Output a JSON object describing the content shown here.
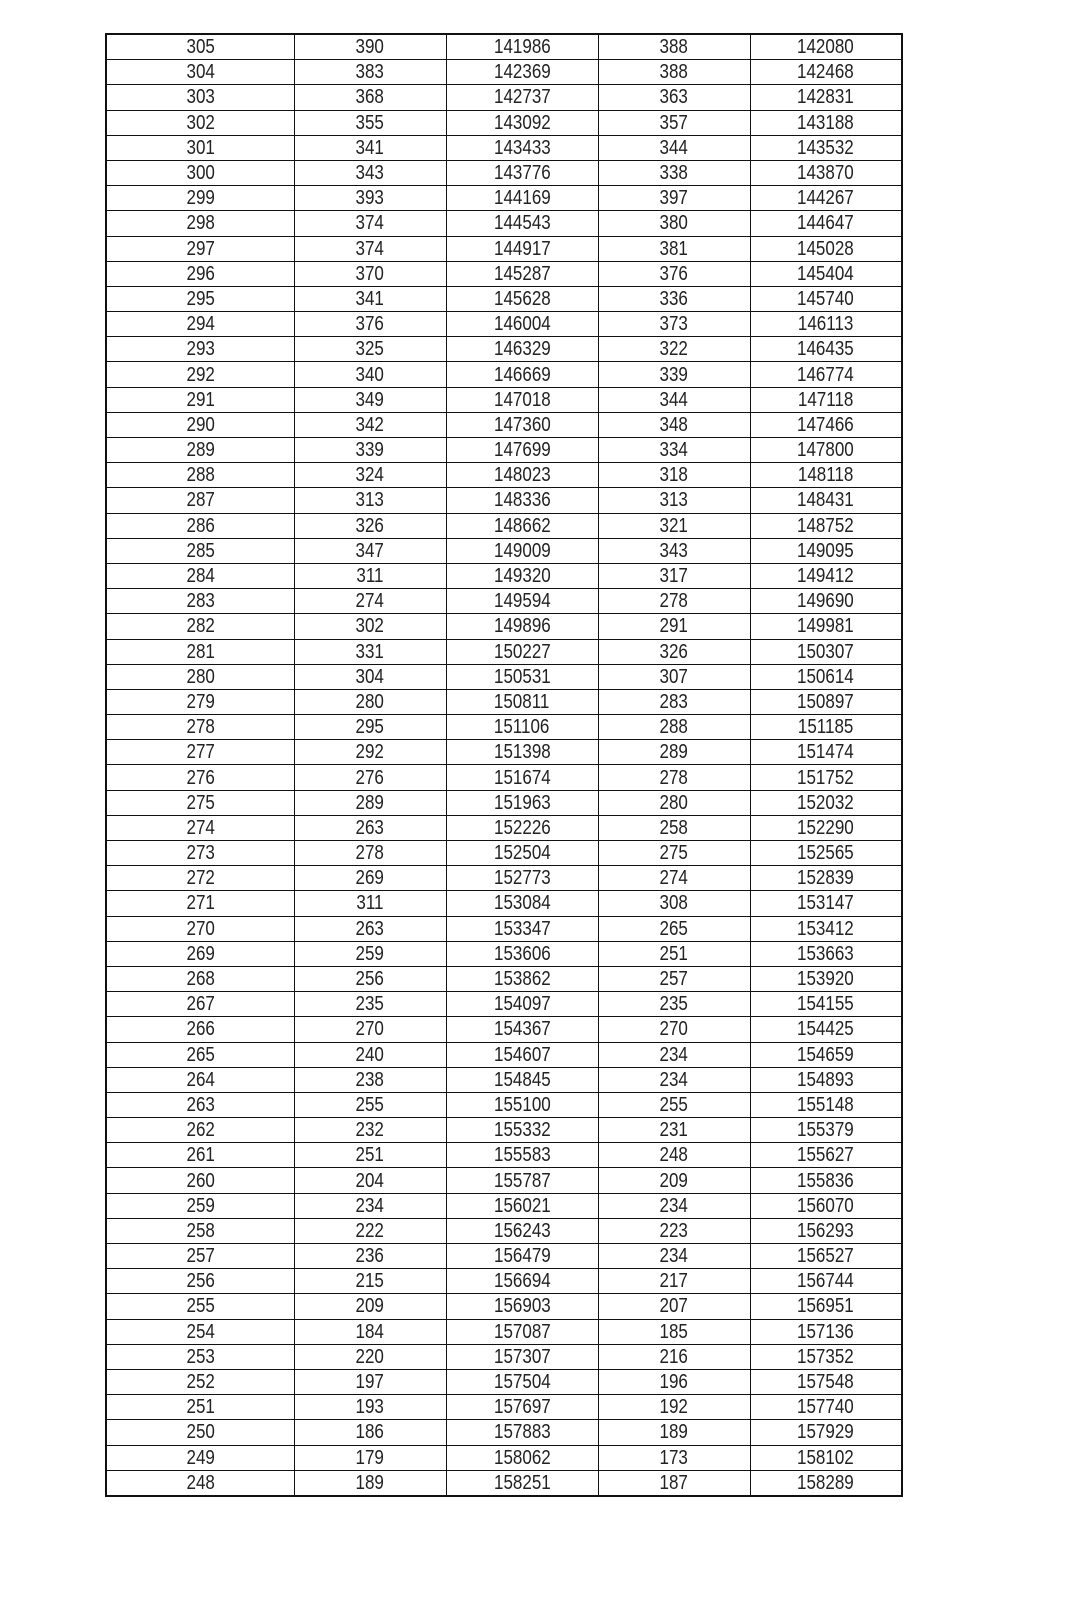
{
  "table": {
    "rows": [
      [
        "305",
        "390",
        "141986",
        "388",
        "142080"
      ],
      [
        "304",
        "383",
        "142369",
        "388",
        "142468"
      ],
      [
        "303",
        "368",
        "142737",
        "363",
        "142831"
      ],
      [
        "302",
        "355",
        "143092",
        "357",
        "143188"
      ],
      [
        "301",
        "341",
        "143433",
        "344",
        "143532"
      ],
      [
        "300",
        "343",
        "143776",
        "338",
        "143870"
      ],
      [
        "299",
        "393",
        "144169",
        "397",
        "144267"
      ],
      [
        "298",
        "374",
        "144543",
        "380",
        "144647"
      ],
      [
        "297",
        "374",
        "144917",
        "381",
        "145028"
      ],
      [
        "296",
        "370",
        "145287",
        "376",
        "145404"
      ],
      [
        "295",
        "341",
        "145628",
        "336",
        "145740"
      ],
      [
        "294",
        "376",
        "146004",
        "373",
        "146113"
      ],
      [
        "293",
        "325",
        "146329",
        "322",
        "146435"
      ],
      [
        "292",
        "340",
        "146669",
        "339",
        "146774"
      ],
      [
        "291",
        "349",
        "147018",
        "344",
        "147118"
      ],
      [
        "290",
        "342",
        "147360",
        "348",
        "147466"
      ],
      [
        "289",
        "339",
        "147699",
        "334",
        "147800"
      ],
      [
        "288",
        "324",
        "148023",
        "318",
        "148118"
      ],
      [
        "287",
        "313",
        "148336",
        "313",
        "148431"
      ],
      [
        "286",
        "326",
        "148662",
        "321",
        "148752"
      ],
      [
        "285",
        "347",
        "149009",
        "343",
        "149095"
      ],
      [
        "284",
        "311",
        "149320",
        "317",
        "149412"
      ],
      [
        "283",
        "274",
        "149594",
        "278",
        "149690"
      ],
      [
        "282",
        "302",
        "149896",
        "291",
        "149981"
      ],
      [
        "281",
        "331",
        "150227",
        "326",
        "150307"
      ],
      [
        "280",
        "304",
        "150531",
        "307",
        "150614"
      ],
      [
        "279",
        "280",
        "150811",
        "283",
        "150897"
      ],
      [
        "278",
        "295",
        "151106",
        "288",
        "151185"
      ],
      [
        "277",
        "292",
        "151398",
        "289",
        "151474"
      ],
      [
        "276",
        "276",
        "151674",
        "278",
        "151752"
      ],
      [
        "275",
        "289",
        "151963",
        "280",
        "152032"
      ],
      [
        "274",
        "263",
        "152226",
        "258",
        "152290"
      ],
      [
        "273",
        "278",
        "152504",
        "275",
        "152565"
      ],
      [
        "272",
        "269",
        "152773",
        "274",
        "152839"
      ],
      [
        "271",
        "311",
        "153084",
        "308",
        "153147"
      ],
      [
        "270",
        "263",
        "153347",
        "265",
        "153412"
      ],
      [
        "269",
        "259",
        "153606",
        "251",
        "153663"
      ],
      [
        "268",
        "256",
        "153862",
        "257",
        "153920"
      ],
      [
        "267",
        "235",
        "154097",
        "235",
        "154155"
      ],
      [
        "266",
        "270",
        "154367",
        "270",
        "154425"
      ],
      [
        "265",
        "240",
        "154607",
        "234",
        "154659"
      ],
      [
        "264",
        "238",
        "154845",
        "234",
        "154893"
      ],
      [
        "263",
        "255",
        "155100",
        "255",
        "155148"
      ],
      [
        "262",
        "232",
        "155332",
        "231",
        "155379"
      ],
      [
        "261",
        "251",
        "155583",
        "248",
        "155627"
      ],
      [
        "260",
        "204",
        "155787",
        "209",
        "155836"
      ],
      [
        "259",
        "234",
        "156021",
        "234",
        "156070"
      ],
      [
        "258",
        "222",
        "156243",
        "223",
        "156293"
      ],
      [
        "257",
        "236",
        "156479",
        "234",
        "156527"
      ],
      [
        "256",
        "215",
        "156694",
        "217",
        "156744"
      ],
      [
        "255",
        "209",
        "156903",
        "207",
        "156951"
      ],
      [
        "254",
        "184",
        "157087",
        "185",
        "157136"
      ],
      [
        "253",
        "220",
        "157307",
        "216",
        "157352"
      ],
      [
        "252",
        "197",
        "157504",
        "196",
        "157548"
      ],
      [
        "251",
        "193",
        "157697",
        "192",
        "157740"
      ],
      [
        "250",
        "186",
        "157883",
        "189",
        "157929"
      ],
      [
        "249",
        "179",
        "158062",
        "173",
        "158102"
      ],
      [
        "248",
        "189",
        "158251",
        "187",
        "158289"
      ]
    ]
  }
}
